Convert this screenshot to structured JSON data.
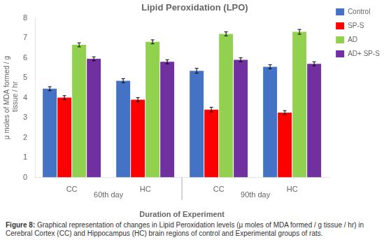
{
  "chart_data": {
    "type": "bar",
    "title": "Lipid Peroxidation (LPO)",
    "xlabel": "Duration of Experiment",
    "ylabel": "μ moles of MDA formed / g\n tissue / hr",
    "categories": [
      "CC",
      "HC",
      "CC",
      "HC"
    ],
    "category_groups": [
      {
        "label": "60th day",
        "categories": [
          0,
          1
        ]
      },
      {
        "label": "90th day",
        "categories": [
          2,
          3
        ]
      }
    ],
    "series": [
      {
        "name": "Control",
        "color": "#4472C4",
        "values": [
          4.45,
          4.85,
          5.35,
          5.55
        ],
        "errors": [
          0.1,
          0.1,
          0.12,
          0.1
        ]
      },
      {
        "name": "SP-S",
        "color": "#FF0000",
        "values": [
          4.0,
          3.9,
          3.4,
          3.25
        ],
        "errors": [
          0.1,
          0.1,
          0.12,
          0.1
        ]
      },
      {
        "name": "AD",
        "color": "#92D050",
        "values": [
          6.65,
          6.8,
          7.2,
          7.3
        ],
        "errors": [
          0.1,
          0.1,
          0.1,
          0.12
        ]
      },
      {
        "name": "AD+ SP-S",
        "color": "#7030A0",
        "values": [
          5.95,
          5.8,
          5.9,
          5.7
        ],
        "errors": [
          0.1,
          0.1,
          0.1,
          0.1
        ]
      }
    ],
    "ylim": [
      0,
      8
    ],
    "yticks": [
      0,
      1,
      2,
      3,
      4,
      5,
      6,
      7,
      8
    ],
    "grid": false,
    "legend": "right",
    "annotations": [
      {
        "bold": "Figure 8:",
        "text": " Graphical representation of changes in Lipid Peroxidation levels (μ moles of MDA formed / g tissue / hr) in Cerebral Cortex (CC) and Hippocampus (HC) brain regions of control and Experimental groups of rats."
      }
    ]
  }
}
